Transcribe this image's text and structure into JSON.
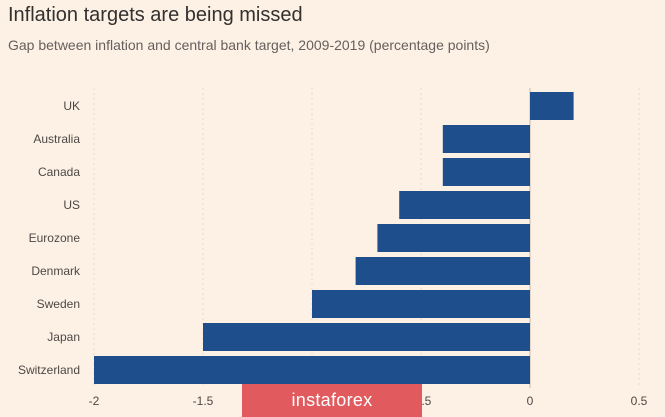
{
  "title": "Inflation targets are being missed",
  "subtitle": "Gap between inflation and central bank target, 2009-2019 (percentage points)",
  "watermark": "instaforex",
  "colors": {
    "bar": "#1f4e8c",
    "background": "#fdf1e6"
  },
  "chart_data": {
    "type": "bar",
    "orientation": "horizontal",
    "categories": [
      "UK",
      "Australia",
      "Canada",
      "US",
      "Eurozone",
      "Denmark",
      "Sweden",
      "Japan",
      "Switzerland"
    ],
    "values": [
      0.2,
      -0.4,
      -0.4,
      -0.6,
      -0.7,
      -0.8,
      -1.0,
      -1.5,
      -2.0
    ],
    "xlim": [
      -2,
      0.5
    ],
    "xticks": [
      -2,
      -1.5,
      -1,
      -0.5,
      0,
      0.5
    ],
    "xtick_labels": [
      "-2",
      "-1.5",
      "-1",
      "-0.5",
      "0",
      "0.5"
    ],
    "grid": true
  }
}
